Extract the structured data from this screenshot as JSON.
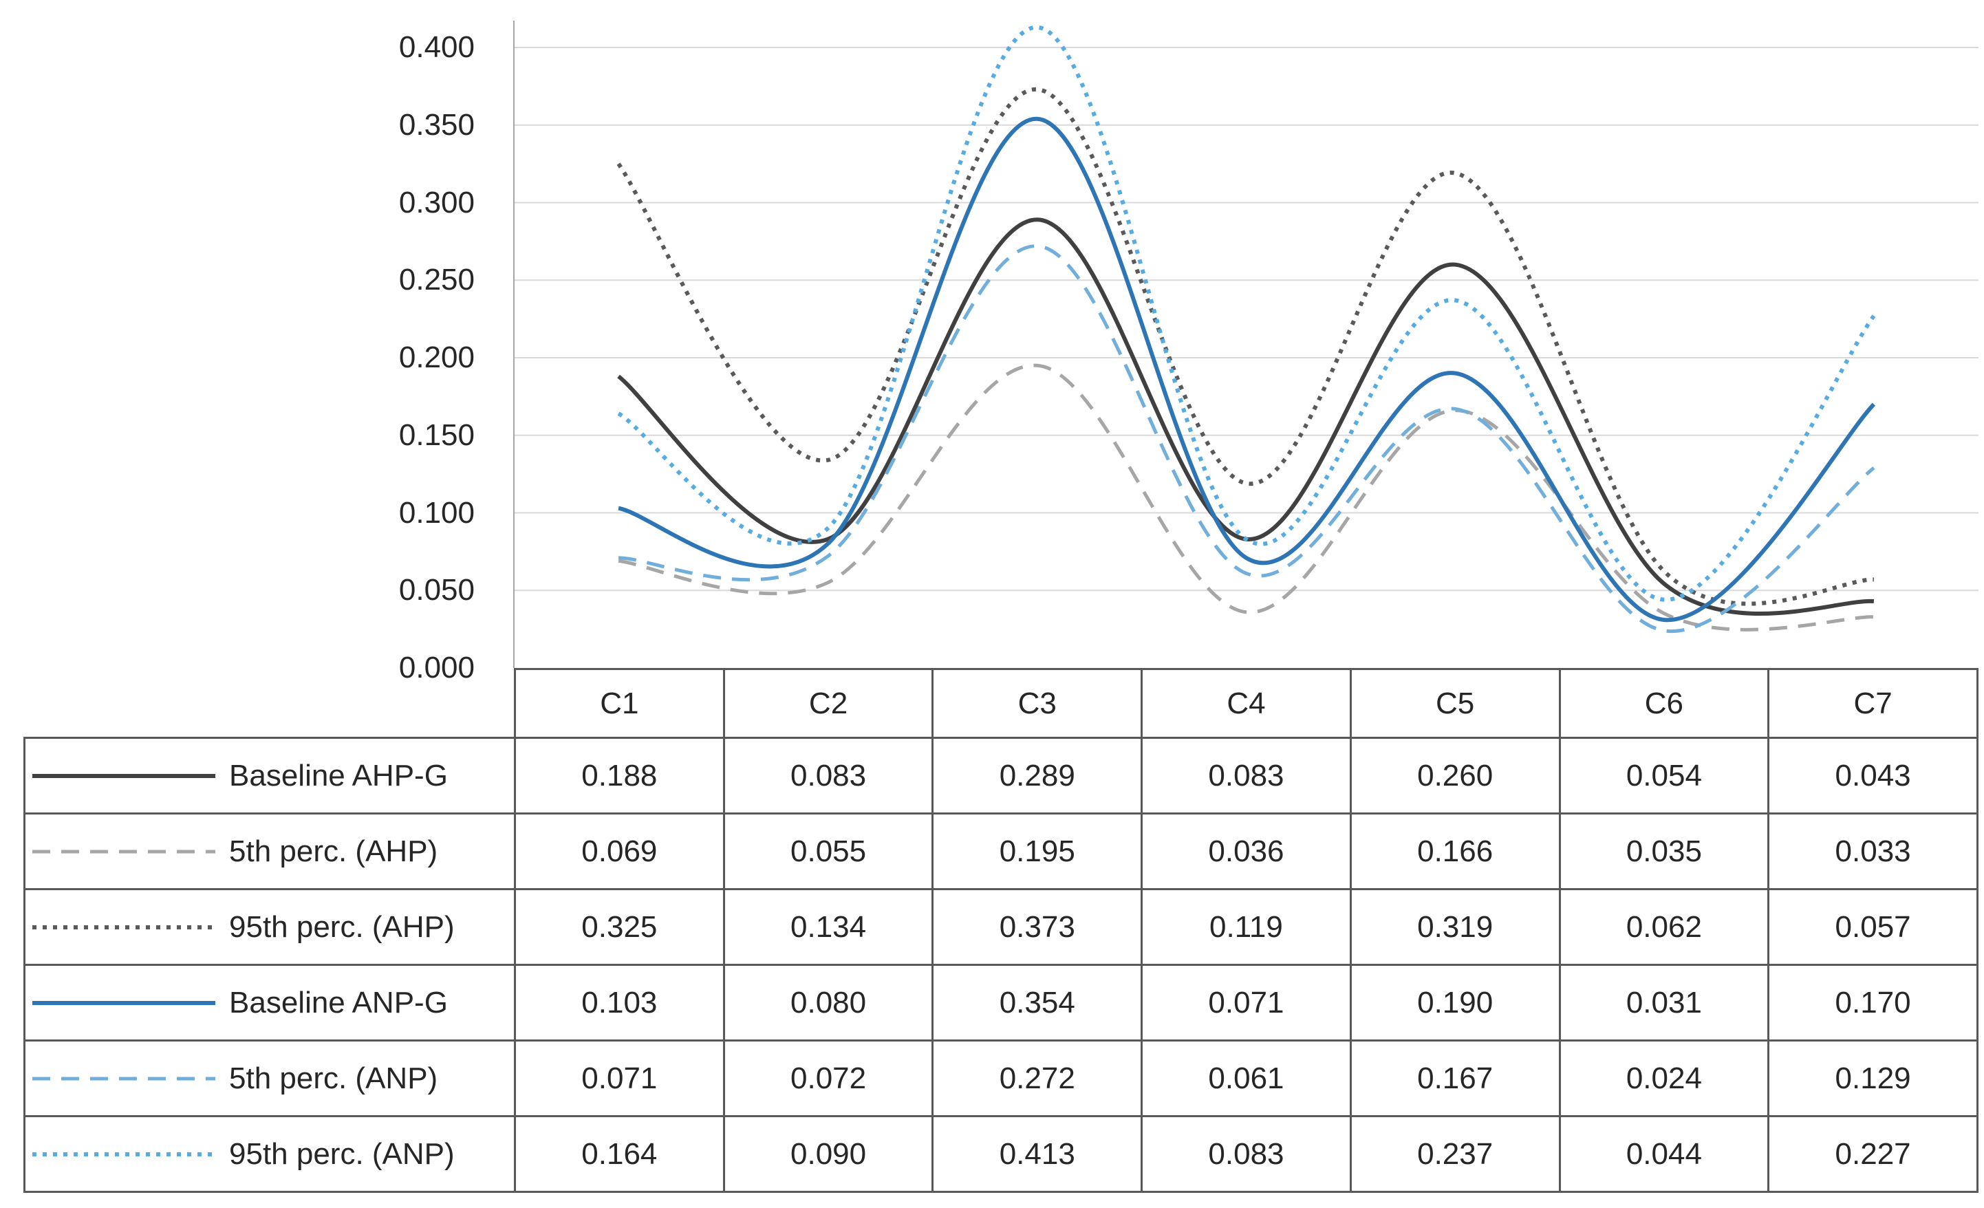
{
  "chart_data": {
    "type": "line",
    "categories": [
      "C1",
      "C2",
      "C3",
      "C4",
      "C5",
      "C6",
      "C7"
    ],
    "series": [
      {
        "name": "Baseline AHP-G",
        "style": "solid",
        "color": "#404040",
        "values": [
          0.188,
          0.083,
          0.289,
          0.083,
          0.26,
          0.054,
          0.043
        ]
      },
      {
        "name": "5th perc. (AHP)",
        "style": "dashed",
        "color": "#a6a6a6",
        "values": [
          0.069,
          0.055,
          0.195,
          0.036,
          0.166,
          0.035,
          0.033
        ]
      },
      {
        "name": "95th perc. (AHP)",
        "style": "dotted",
        "color": "#595959",
        "values": [
          0.325,
          0.134,
          0.373,
          0.119,
          0.319,
          0.062,
          0.057
        ]
      },
      {
        "name": "Baseline ANP-G",
        "style": "solid",
        "color": "#2e75b6",
        "values": [
          0.103,
          0.08,
          0.354,
          0.071,
          0.19,
          0.031,
          0.17
        ]
      },
      {
        "name": "5th perc. (ANP)",
        "style": "dashed",
        "color": "#70aedc",
        "values": [
          0.071,
          0.072,
          0.272,
          0.061,
          0.167,
          0.024,
          0.129
        ]
      },
      {
        "name": "95th perc. (ANP)",
        "style": "dotted",
        "color": "#56ace2",
        "values": [
          0.164,
          0.09,
          0.413,
          0.083,
          0.237,
          0.044,
          0.227
        ]
      }
    ],
    "title": "",
    "xlabel": "",
    "ylabel": "",
    "ylim": [
      0.0,
      0.42
    ],
    "yticks": [
      0.0,
      0.05,
      0.1,
      0.15,
      0.2,
      0.25,
      0.3,
      0.35,
      0.4
    ],
    "ytick_format": "3dp",
    "value_format": "3dp",
    "grid": "horizontal",
    "line_smoothing": true,
    "legend_position": "table-left-column"
  },
  "colors": {
    "gridline": "#d9d9d9",
    "axis": "#a6a6a6",
    "table_border": "#595959",
    "text": "#262626",
    "background": "#ffffff"
  }
}
